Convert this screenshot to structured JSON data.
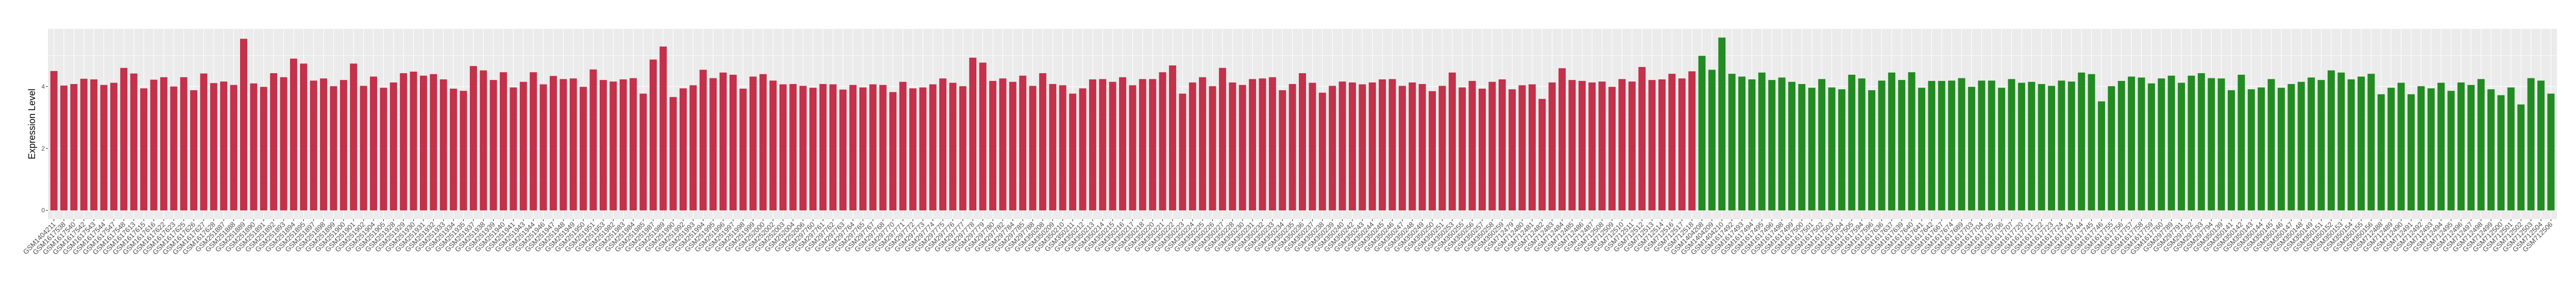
{
  "chart_data": {
    "type": "bar",
    "title": "",
    "xlabel": "",
    "ylabel": "Expression Level",
    "ylim": [
      -0.28,
      5.86
    ],
    "y_ticks": [
      0,
      2,
      4
    ],
    "grid": true,
    "legend": "none",
    "panel_background": "#EBEBEB",
    "series": [
      {
        "color": "#C3314A",
        "categories": [
          "GSM1404211",
          "GSM1617538",
          "GSM1617540",
          "GSM1617542",
          "GSM1617543",
          "GSM1617544",
          "GSM1617547",
          "GSM1617548",
          "GSM1617613",
          "GSM1617615",
          "GSM1617616",
          "GSM1617622",
          "GSM1617623",
          "GSM1617625",
          "GSM1617626",
          "GSM1617627",
          "GSM1617628",
          "GSM251887",
          "GSM251888",
          "GSM251889",
          "GSM251890",
          "GSM251891",
          "GSM251892",
          "GSM251893",
          "GSM251894",
          "GSM251895",
          "GSM251897",
          "GSM251898",
          "GSM251899",
          "GSM251900",
          "GSM251901",
          "GSM251902",
          "GSM251904",
          "GSM251905",
          "GSM251928",
          "GSM251929",
          "GSM251930",
          "GSM251931",
          "GSM251932",
          "GSM251933",
          "GSM251934",
          "GSM251935",
          "GSM251937",
          "GSM251938",
          "GSM251939",
          "GSM251940",
          "GSM251941",
          "GSM251943",
          "GSM251944",
          "GSM251946",
          "GSM251947",
          "GSM251948",
          "GSM251949",
          "GSM251950",
          "GSM251951",
          "GSM251953",
          "GSM251982",
          "GSM251983",
          "GSM251984",
          "GSM251985",
          "GSM251987",
          "GSM251989",
          "GSM251990",
          "GSM251992",
          "GSM251993",
          "GSM251994",
          "GSM251995",
          "GSM251996",
          "GSM251997",
          "GSM251998",
          "GSM251999",
          "GSM252000",
          "GSM252002",
          "GSM252003",
          "GSM252004",
          "GSM252006",
          "GSM297760",
          "GSM297761",
          "GSM297762",
          "GSM297763",
          "GSM297764",
          "GSM297765",
          "GSM297767",
          "GSM297768",
          "GSM297770",
          "GSM297771",
          "GSM297772",
          "GSM297773",
          "GSM297774",
          "GSM297775",
          "GSM297776",
          "GSM297777",
          "GSM297778",
          "GSM297779",
          "GSM297780",
          "GSM297782",
          "GSM297784",
          "GSM297785",
          "GSM297788",
          "GSM350208",
          "GSM350209",
          "GSM350210",
          "GSM350211",
          "GSM350212",
          "GSM350213",
          "GSM350214",
          "GSM350215",
          "GSM350216",
          "GSM350217",
          "GSM350218",
          "GSM350220",
          "GSM350221",
          "GSM350222",
          "GSM350223",
          "GSM350224",
          "GSM350225",
          "GSM350226",
          "GSM350227",
          "GSM350228",
          "GSM350230",
          "GSM350231",
          "GSM350232",
          "GSM350233",
          "GSM350234",
          "GSM350235",
          "GSM350236",
          "GSM350237",
          "GSM350238",
          "GSM350239",
          "GSM350240",
          "GSM350242",
          "GSM350243",
          "GSM350244",
          "GSM350245",
          "GSM350246",
          "GSM350247",
          "GSM350248",
          "GSM350249",
          "GSM350250",
          "GSM350251",
          "GSM350253",
          "GSM350255",
          "GSM350256",
          "GSM350257",
          "GSM350258",
          "GSM350259",
          "GSM712479",
          "GSM712480",
          "GSM712481",
          "GSM712482",
          "GSM712483",
          "GSM712484",
          "GSM712485",
          "GSM712486",
          "GSM712487",
          "GSM712508",
          "GSM712509",
          "GSM712510",
          "GSM712511",
          "GSM712512",
          "GSM712513",
          "GSM712514",
          "GSM712516",
          "GSM712517",
          "GSM712518"
        ],
        "values": [
          4.5,
          4.03,
          4.08,
          4.25,
          4.23,
          4.05,
          4.12,
          4.6,
          4.42,
          3.94,
          4.22,
          4.3,
          4.0,
          4.3,
          3.88,
          4.42,
          4.11,
          4.16,
          4.05,
          5.54,
          4.1,
          3.99,
          4.43,
          4.3,
          4.9,
          4.74,
          4.19,
          4.26,
          4.01,
          4.21,
          4.74,
          4.02,
          4.32,
          3.96,
          4.13,
          4.43,
          4.48,
          4.35,
          4.4,
          4.23,
          3.93,
          3.86,
          4.66,
          4.52,
          4.21,
          4.46,
          3.97,
          4.15,
          4.46,
          4.07,
          4.34,
          4.24,
          4.26,
          3.99,
          4.55,
          4.21,
          4.16,
          4.23,
          4.27,
          3.77,
          4.87,
          5.29,
          3.66,
          3.94,
          4.04,
          4.54,
          4.27,
          4.45,
          4.38,
          3.93,
          4.32,
          4.4,
          4.19,
          4.07,
          4.08,
          4.02,
          3.96,
          4.08,
          4.07,
          3.9,
          4.05,
          3.97,
          4.07,
          4.05,
          3.82,
          4.15,
          3.94,
          3.97,
          4.07,
          4.26,
          4.12,
          4.01,
          4.93,
          4.77,
          4.18,
          4.26,
          4.15,
          4.35,
          4.02,
          4.43,
          4.08,
          4.04,
          3.77,
          3.94,
          4.23,
          4.24,
          4.15,
          4.3,
          4.04,
          4.24,
          4.24,
          4.46,
          4.68,
          3.77,
          4.13,
          4.3,
          4.01,
          4.6,
          4.13,
          4.05,
          4.24,
          4.26,
          4.3,
          3.88,
          4.08,
          4.43,
          4.12,
          3.8,
          4.02,
          4.16,
          4.13,
          4.07,
          4.13,
          4.23,
          4.24,
          4.02,
          4.13,
          4.08,
          3.85,
          4.02,
          4.45,
          3.97,
          4.18,
          3.93,
          4.15,
          4.23,
          3.91,
          4.04,
          4.07,
          3.6,
          4.13,
          4.59,
          4.21,
          4.18,
          4.13,
          4.16,
          3.99,
          4.24,
          4.16,
          4.63,
          4.21,
          4.23,
          4.41,
          4.26,
          4.49
        ]
      },
      {
        "color": "#228B22",
        "categories": [
          "GSM1404208",
          "GSM1404209",
          "GSM1404210",
          "GSM1617492",
          "GSM1617493",
          "GSM1617494",
          "GSM1617495",
          "GSM1617496",
          "GSM1617498",
          "GSM1617499",
          "GSM1617500",
          "GSM1617501",
          "GSM1617502",
          "GSM1617503",
          "GSM1617504",
          "GSM1617505",
          "GSM1617594",
          "GSM1617596",
          "GSM1617636",
          "GSM1617637",
          "GSM1617639",
          "GSM1617640",
          "GSM1617641",
          "GSM1617642",
          "GSM1617667",
          "GSM1617674",
          "GSM1617689",
          "GSM1617703",
          "GSM1617704",
          "GSM1617705",
          "GSM1617706",
          "GSM1617707",
          "GSM1617720",
          "GSM1617721",
          "GSM1617722",
          "GSM1617723",
          "GSM1617724",
          "GSM1617743",
          "GSM1617744",
          "GSM1617745",
          "GSM1617746",
          "GSM1617755",
          "GSM1617756",
          "GSM1617757",
          "GSM1617758",
          "GSM1617759",
          "GSM1617760",
          "GSM297789",
          "GSM297791",
          "GSM297792",
          "GSM297793",
          "GSM297794",
          "GSM350139",
          "GSM350141",
          "GSM350142",
          "GSM350143",
          "GSM350144",
          "GSM350145",
          "GSM350146",
          "GSM350147",
          "GSM350148",
          "GSM350149",
          "GSM350151",
          "GSM350152",
          "GSM350153",
          "GSM350154",
          "GSM350155",
          "GSM350156",
          "GSM712488",
          "GSM712489",
          "GSM712490",
          "GSM712491",
          "GSM712492",
          "GSM712493",
          "GSM712494",
          "GSM712495",
          "GSM712496",
          "GSM712497",
          "GSM712498",
          "GSM712499",
          "GSM712500",
          "GSM712501",
          "GSM712502",
          "GSM712503",
          "GSM712504",
          "GSM712506"
        ],
        "values": [
          4.99,
          4.54,
          5.58,
          4.41,
          4.32,
          4.23,
          4.45,
          4.21,
          4.29,
          4.15,
          4.08,
          3.96,
          4.24,
          3.97,
          3.91,
          4.38,
          4.26,
          3.88,
          4.19,
          4.45,
          4.21,
          4.46,
          3.96,
          4.18,
          4.18,
          4.19,
          4.27,
          3.99,
          4.19,
          4.19,
          3.96,
          4.24,
          4.12,
          4.15,
          4.08,
          4.02,
          4.19,
          4.16,
          4.45,
          4.4,
          3.52,
          4.01,
          4.18,
          4.32,
          4.29,
          4.1,
          4.26,
          4.35,
          4.12,
          4.35,
          4.43,
          4.27,
          4.26,
          3.88,
          4.38,
          3.91,
          3.97,
          4.24,
          3.96,
          4.08,
          4.15,
          4.29,
          4.21,
          4.52,
          4.45,
          4.23,
          4.32,
          4.41,
          3.75,
          3.96,
          4.12,
          3.75,
          4.01,
          3.94,
          4.12,
          3.86,
          4.13,
          4.05,
          4.24,
          3.91,
          3.72,
          3.97,
          3.42,
          4.27,
          4.19,
          3.77
        ]
      }
    ]
  }
}
